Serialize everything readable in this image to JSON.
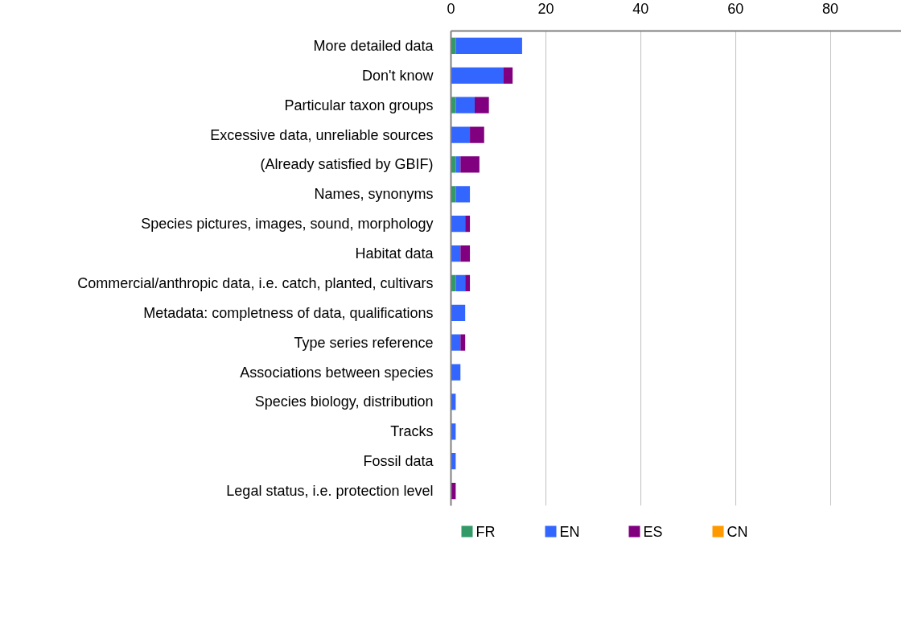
{
  "chart_data": {
    "type": "bar",
    "orientation": "horizontal",
    "stacked": true,
    "categories": [
      "More detailed data",
      "Don't know",
      "Particular taxon groups",
      "Excessive data, unreliable sources",
      "(Already satisfied by GBIF)",
      "Names, synonyms",
      "Species pictures, images, sound, morphology",
      "Habitat data",
      "Commercial/anthropic data, i.e. catch, planted, cultivars",
      "Metadata: completness of data, qualifications",
      "Type series reference",
      "Associations between species",
      "Species biology, distribution",
      "Tracks",
      "Fossil data",
      "Legal status, i.e. protection level"
    ],
    "series": [
      {
        "name": "FR",
        "color": "#339966",
        "values": [
          1,
          0,
          1,
          0,
          1,
          1,
          0,
          0,
          1,
          0,
          0,
          0,
          0,
          0,
          0,
          0
        ]
      },
      {
        "name": "EN",
        "color": "#3366ff",
        "values": [
          14,
          11,
          4,
          4,
          1,
          3,
          3,
          2,
          2,
          3,
          2,
          2,
          1,
          1,
          1,
          0
        ]
      },
      {
        "name": "ES",
        "color": "#800080",
        "values": [
          0,
          2,
          3,
          3,
          4,
          0,
          1,
          2,
          1,
          0,
          1,
          0,
          0,
          0,
          0,
          1
        ]
      },
      {
        "name": "CN",
        "color": "#ff9900",
        "values": [
          0,
          0,
          0,
          0,
          0,
          0,
          0,
          0,
          0,
          0,
          0,
          0,
          0,
          0,
          0,
          0
        ]
      }
    ],
    "xlim": [
      0,
      95
    ],
    "xticks": [
      0,
      20,
      40,
      60,
      80
    ],
    "grid": "x",
    "legend": "bottom"
  }
}
